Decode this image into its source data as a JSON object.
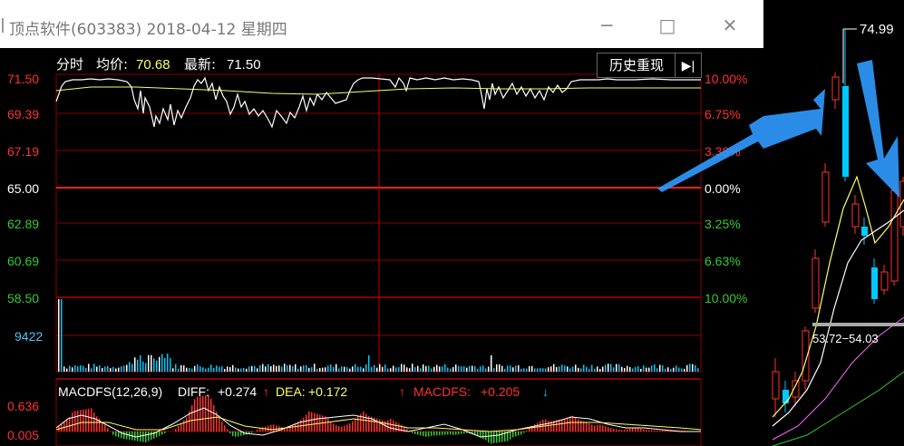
{
  "window": {
    "title": "顶点软件(603383) 2018-04-12 星期四",
    "minimize_icon": "minimize-icon",
    "maximize_icon": "maximize-icon",
    "close_icon": "close-icon"
  },
  "header": {
    "mode_label": "分时",
    "avg_label": "均价:",
    "avg_value": "70.68",
    "latest_label": "最新:",
    "latest_value": "71.50",
    "history_button": "历史重现",
    "replay_icon": "replay-arrow-icon"
  },
  "price_axis_left": [
    "71.50",
    "69.39",
    "67.19",
    "65.00",
    "62.89",
    "60.69",
    "58.50"
  ],
  "pct_axis_right": [
    "10.00%",
    "6.75%",
    "3.38%",
    "0.00%",
    "3.25%",
    "6.63%",
    "10.00%"
  ],
  "volume_label": "9422",
  "macd": {
    "name": "MACDFS(12,26,9)",
    "diff_label": "DIFF:",
    "diff_value": "+0.274",
    "dea_label": "DEA:",
    "dea_value": "+0.172",
    "macdfs_label": "MACDFS:",
    "macdfs_value": "+0.205",
    "axis": [
      "0.636",
      "0.005"
    ]
  },
  "side_panel": {
    "high_value": "74.99",
    "range_label": "53.72−54.03"
  },
  "colors": {
    "up": "#ff3030",
    "down": "#00c8ff",
    "grid": "#8b0000",
    "neutral": "#ffffff",
    "green": "#33cc33",
    "yellow": "#ffff66",
    "arrow": "#2f9bff"
  }
}
